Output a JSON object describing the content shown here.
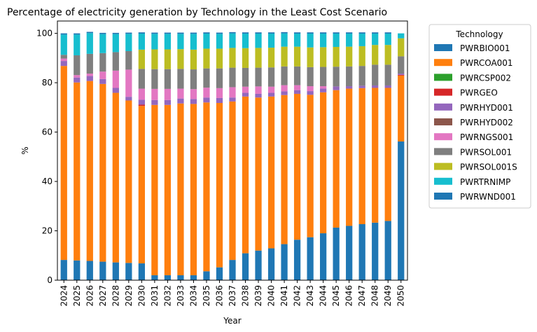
{
  "chart_data": {
    "type": "bar",
    "stacked": true,
    "title": "Percentage of electricity generation by Technology in the Least Cost Scenario",
    "xlabel": "Year",
    "ylabel": "%",
    "ylim": [
      0,
      105
    ],
    "yticks": [
      0,
      20,
      40,
      60,
      80,
      100
    ],
    "grid": false,
    "legend_placement": "outside right",
    "legend_title": "Technology",
    "categories": [
      "2024",
      "2025",
      "2026",
      "2027",
      "2028",
      "2029",
      "2030",
      "2031",
      "2032",
      "2033",
      "2034",
      "2035",
      "2036",
      "2037",
      "2038",
      "2039",
      "2040",
      "2041",
      "2042",
      "2043",
      "2044",
      "2045",
      "2046",
      "2047",
      "2048",
      "2049",
      "2050"
    ],
    "series": [
      {
        "name": "PWRBIO001",
        "color": "#1f77b4",
        "values": [
          0,
          0,
          0,
          0,
          0,
          0,
          0,
          0,
          0,
          0,
          0,
          0,
          0,
          0,
          0,
          0,
          0,
          0,
          0,
          0,
          0,
          0,
          0,
          0,
          0,
          0,
          0
        ]
      },
      {
        "name": "PWRCOA001",
        "color": "#ff7f0e",
        "values": [
          0,
          0,
          0,
          0,
          0,
          0,
          0,
          0,
          0,
          0,
          0,
          0,
          0,
          0,
          0,
          0,
          0,
          0,
          0,
          0,
          0,
          0,
          0,
          0,
          0,
          0,
          0
        ]
      },
      {
        "name": "PWRCSP002",
        "color": "#2ca02c",
        "values": [
          0,
          0,
          0,
          0,
          0,
          0,
          0,
          0,
          0,
          0,
          0,
          0,
          0,
          0,
          0,
          0,
          0,
          0,
          0,
          0,
          0,
          0,
          0,
          0,
          0,
          0,
          0
        ]
      },
      {
        "name": "PWRGEO",
        "color": "#d62728",
        "values": [
          0,
          0,
          0,
          0,
          0,
          0,
          0,
          0,
          0,
          0,
          0,
          0,
          0,
          0,
          0,
          0,
          0,
          0,
          0,
          0,
          0,
          0,
          0,
          0,
          0,
          0,
          0
        ]
      },
      {
        "name": "PWRHYD001",
        "color": "#9467bd",
        "values": [
          0,
          0,
          0,
          0,
          0,
          0,
          0,
          0,
          0,
          0,
          0,
          0,
          0,
          0,
          0,
          0,
          0,
          0,
          0,
          0,
          0,
          0,
          0,
          0,
          0,
          0,
          0
        ]
      },
      {
        "name": "PWRHYD002",
        "color": "#8c564b",
        "values": [
          0,
          0,
          0,
          0,
          0,
          0,
          0,
          0,
          0,
          0,
          0,
          0,
          0,
          0,
          0,
          0,
          0,
          0,
          0,
          0,
          0,
          0,
          0,
          0,
          0,
          0,
          0
        ]
      },
      {
        "name": "PWRNGS001",
        "color": "#e377c2",
        "values": [
          0,
          0,
          0,
          0,
          0,
          0,
          0,
          0,
          0,
          0,
          0,
          0,
          0,
          0,
          0,
          0,
          0,
          0,
          0,
          0,
          0,
          0,
          0,
          0,
          0,
          0,
          0
        ]
      },
      {
        "name": "PWRSOL001",
        "color": "#7f7f7f",
        "values": [
          0,
          0,
          0,
          0,
          0,
          0,
          0,
          0,
          0,
          0,
          0,
          0,
          0,
          0,
          0,
          0,
          0,
          0,
          0,
          0,
          0,
          0,
          0,
          0,
          0,
          0,
          0
        ]
      },
      {
        "name": "PWRSOL001S",
        "color": "#bcbd22",
        "values": [
          0,
          0,
          0,
          0,
          0,
          0,
          0,
          0,
          0,
          0,
          0,
          0,
          0,
          0,
          0,
          0,
          0,
          0,
          0,
          0,
          0,
          0,
          0,
          0,
          0,
          0,
          0
        ]
      },
      {
        "name": "PWRTRNIMP",
        "color": "#17becf",
        "values": [
          0,
          0,
          0,
          0,
          0,
          0,
          0,
          0,
          0,
          0,
          0,
          0,
          0,
          0,
          0,
          0,
          0,
          0,
          0,
          0,
          0,
          0,
          0,
          0,
          0,
          0,
          0
        ]
      },
      {
        "name": "PWRWND001",
        "color": "#1f77b4",
        "values": [
          0,
          0,
          0,
          0,
          0,
          0,
          0,
          0,
          0,
          0,
          0,
          0,
          0,
          0,
          0,
          0,
          0,
          0,
          0,
          0,
          0,
          0,
          0,
          0,
          0,
          0,
          0
        ]
      }
    ],
    "stack_values": {
      "PWRBIO001": [
        8.2,
        8.0,
        7.8,
        7.5,
        7.2,
        7.0,
        6.8,
        2.0,
        2.0,
        2.0,
        2.0,
        3.6,
        5.2,
        8.2,
        10.9,
        12.0,
        12.9,
        14.6,
        16.4,
        17.4,
        19.0,
        21.3,
        22.0,
        22.7,
        23.3,
        24.0,
        56.2
      ],
      "PWRCOA001": [
        78.6,
        72.1,
        72.9,
        72.0,
        68.7,
        65.8,
        63.8,
        69.0,
        69.0,
        69.6,
        69.4,
        68.4,
        66.6,
        64.2,
        63.5,
        62.0,
        61.5,
        60.4,
        59.1,
        57.7,
        57.1,
        55.7,
        55.6,
        55.1,
        54.6,
        53.9,
        26.7
      ],
      "PWRCSP002": [
        0,
        0,
        0,
        0,
        0,
        0,
        0,
        0,
        0,
        0,
        0,
        0,
        0,
        0,
        0,
        0,
        0,
        0,
        0,
        0,
        0,
        0,
        0,
        0,
        0,
        0,
        0
      ],
      "PWRGEO": [
        0,
        0,
        0,
        0,
        0,
        0,
        0.5,
        0,
        0,
        0,
        0,
        0,
        0,
        0,
        0,
        0,
        0,
        0,
        0,
        0,
        0,
        0,
        0,
        0,
        0,
        0,
        0.3
      ],
      "PWRHYD001": [
        2.0,
        2.0,
        2.0,
        2.0,
        2.0,
        1.5,
        2.0,
        2.0,
        2.0,
        2.0,
        2.0,
        2.0,
        2.0,
        1.6,
        1.5,
        1.5,
        1.5,
        1.5,
        1.5,
        1.5,
        1.5,
        1.5,
        1.0,
        1.0,
        1.0,
        1.0,
        0.5
      ],
      "PWRHYD002": [
        0,
        0,
        0,
        0,
        0,
        0,
        0,
        0,
        0,
        0,
        0,
        0,
        0,
        0,
        0,
        0,
        0,
        0,
        0,
        0,
        0,
        0,
        0,
        0,
        0,
        0,
        0
      ],
      "PWRNGS001": [
        1.0,
        1.0,
        1.0,
        3.0,
        7.0,
        11.0,
        4.5,
        4.5,
        4.5,
        4.0,
        4.0,
        4.0,
        4.0,
        4.2,
        2.5,
        3.0,
        2.5,
        2.5,
        2.0,
        2.0,
        1.0,
        0,
        0,
        0,
        0,
        0,
        0
      ],
      "PWRSOL001": [
        1.5,
        8.0,
        8.0,
        7.5,
        7.5,
        7.5,
        8.0,
        8.0,
        8.0,
        8.0,
        8.0,
        7.8,
        8.0,
        7.9,
        7.6,
        7.6,
        7.8,
        7.6,
        7.6,
        7.7,
        7.8,
        8.0,
        8.0,
        8.0,
        8.4,
        8.4,
        7.0
      ],
      "PWRSOL001S": [
        0,
        0,
        0,
        0,
        0,
        0,
        7.8,
        8.0,
        8.0,
        8.0,
        8.0,
        8.0,
        8.0,
        8.0,
        8.0,
        8.0,
        8.0,
        8.0,
        8.0,
        8.0,
        8.0,
        8.0,
        8.0,
        8.0,
        8.0,
        8.0,
        7.3
      ],
      "PWRTRNIMP": [
        8.2,
        8.4,
        8.4,
        7.7,
        7.3,
        7.0,
        6.5,
        6.3,
        6.3,
        6.2,
        6.4,
        6.1,
        6.0,
        5.9,
        5.9,
        5.8,
        5.7,
        5.4,
        5.3,
        5.6,
        5.5,
        5.4,
        5.3,
        5.1,
        4.6,
        4.6,
        2.0
      ],
      "PWRTRNIMP_top": [
        0.5,
        0.5,
        0.5,
        0.5,
        0.5,
        0.5,
        0.5,
        0.5,
        0.5,
        0.5,
        0.5,
        0.5,
        0.5,
        0.5,
        0.5,
        0.5,
        0.5,
        0.5,
        0.5,
        0.5,
        0.5,
        0.5,
        0.5,
        0.5,
        0.5,
        0.5,
        0
      ],
      "PWRWND001": [
        0,
        0,
        0,
        0,
        0,
        0,
        0,
        0,
        0,
        0,
        0,
        0,
        0,
        0,
        0,
        0,
        0,
        0,
        0,
        0,
        0,
        0,
        0,
        0,
        0,
        0,
        0
      ]
    },
    "stack_order": [
      "PWRBIO001",
      "PWRCOA001",
      "PWRCSP002",
      "PWRGEO",
      "PWRHYD001",
      "PWRHYD002",
      "PWRNGS001",
      "PWRSOL001",
      "PWRSOL001S",
      "PWRTRNIMP",
      "PWRTRNIMP_top",
      "PWRWND001"
    ],
    "stack_colors": {
      "PWRBIO001": "#1f77b4",
      "PWRCOA001": "#ff7f0e",
      "PWRCSP002": "#2ca02c",
      "PWRGEO": "#d62728",
      "PWRHYD001": "#9467bd",
      "PWRHYD002": "#8c564b",
      "PWRNGS001": "#e377c2",
      "PWRSOL001": "#7f7f7f",
      "PWRSOL001S": "#bcbd22",
      "PWRTRNIMP": "#17becf",
      "PWRTRNIMP_top": "#1f77b4",
      "PWRWND001": "#1f77b4"
    }
  }
}
